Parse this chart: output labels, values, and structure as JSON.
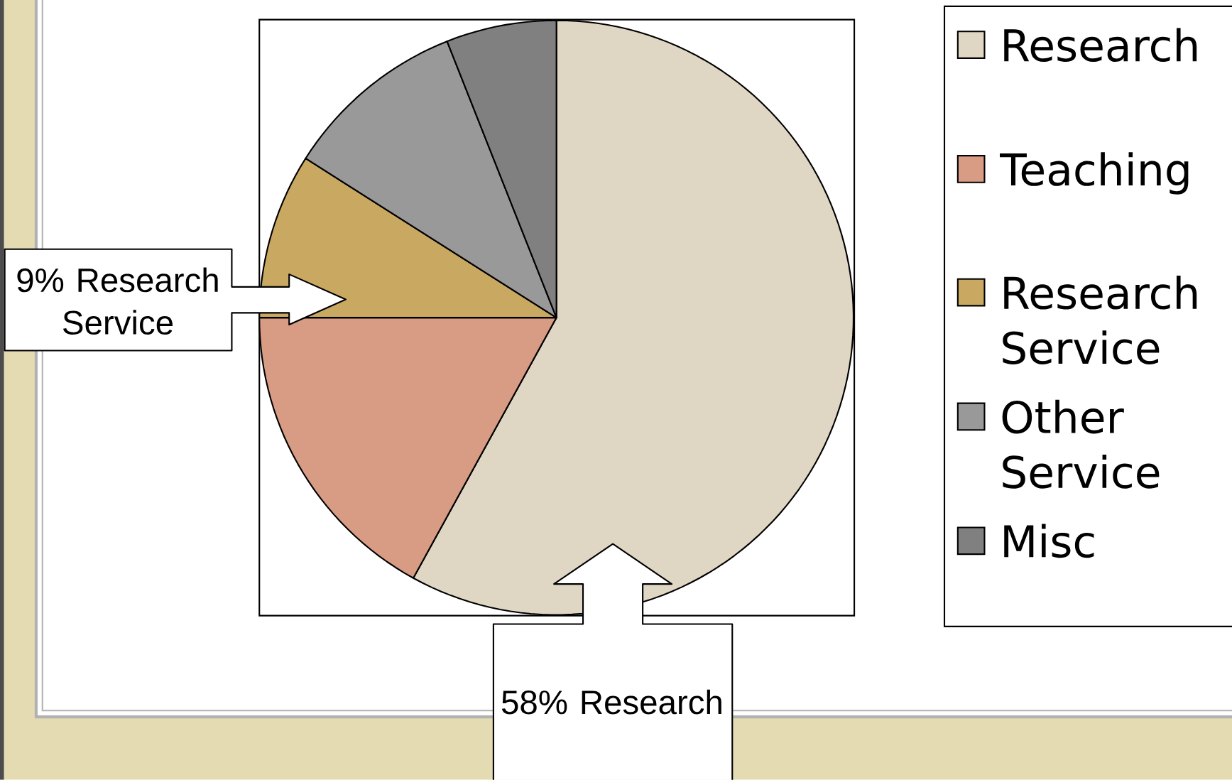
{
  "chart_data": {
    "type": "pie",
    "categories": [
      "Research",
      "Teaching",
      "Research Service",
      "Other Service",
      "Misc"
    ],
    "values": [
      58,
      17,
      9,
      10,
      6
    ],
    "colors": [
      "#dfd7c3",
      "#d89b84",
      "#c9a862",
      "#999999",
      "#808080"
    ],
    "annotations": [
      "9% Research Service",
      "58% Research"
    ],
    "legend": "right"
  }
}
